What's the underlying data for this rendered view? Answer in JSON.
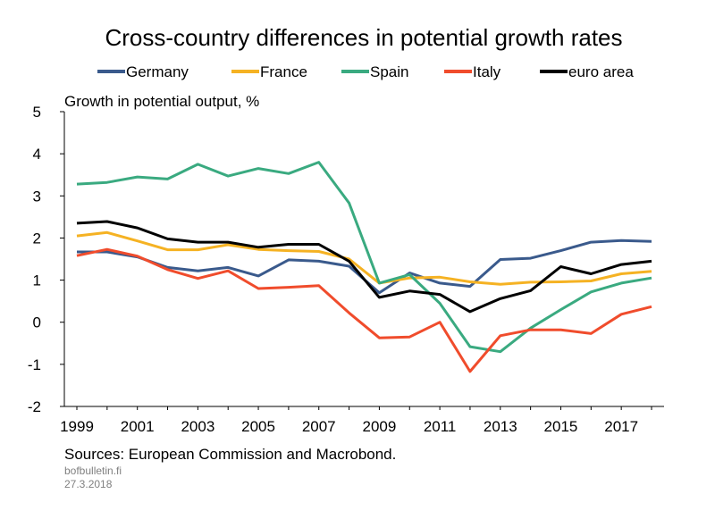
{
  "chart_data": {
    "type": "line",
    "title": "Cross-country differences in potential growth rates",
    "ylabel": "Growth in potential output, %",
    "xlabel": "",
    "x": [
      1999,
      2000,
      2001,
      2002,
      2003,
      2004,
      2005,
      2006,
      2007,
      2008,
      2009,
      2010,
      2011,
      2012,
      2013,
      2014,
      2015,
      2016,
      2017,
      2018
    ],
    "xticks": [
      "1999",
      "2001",
      "2003",
      "2005",
      "2007",
      "2009",
      "2011",
      "2013",
      "2015",
      "2017"
    ],
    "yticks": [
      "5",
      "4",
      "3",
      "2",
      "1",
      "0",
      "-1",
      "-2"
    ],
    "ylim": [
      -2,
      5
    ],
    "xlim": [
      1999,
      2018
    ],
    "grid": false,
    "legend_position": "top",
    "series": [
      {
        "name": "Germany",
        "color": "#3a5a8c",
        "values": [
          1.67,
          1.67,
          1.55,
          1.3,
          1.22,
          1.3,
          1.1,
          1.48,
          1.45,
          1.33,
          0.7,
          1.17,
          0.93,
          0.85,
          1.49,
          1.52,
          1.7,
          1.9,
          1.94,
          1.92
        ]
      },
      {
        "name": "France",
        "color": "#f5b223",
        "values": [
          2.05,
          2.13,
          1.93,
          1.72,
          1.72,
          1.84,
          1.73,
          1.7,
          1.68,
          1.5,
          0.93,
          1.05,
          1.07,
          0.96,
          0.9,
          0.95,
          0.96,
          0.98,
          1.15,
          1.21
        ]
      },
      {
        "name": "Spain",
        "color": "#3aaa80",
        "values": [
          3.28,
          3.32,
          3.45,
          3.4,
          3.75,
          3.47,
          3.65,
          3.53,
          3.8,
          2.83,
          0.93,
          1.13,
          0.45,
          -0.58,
          -0.7,
          -0.14,
          0.3,
          0.72,
          0.93,
          1.05
        ]
      },
      {
        "name": "Italy",
        "color": "#f04c2c",
        "values": [
          1.58,
          1.73,
          1.57,
          1.25,
          1.04,
          1.22,
          0.8,
          0.83,
          0.87,
          0.22,
          -0.37,
          -0.35,
          0.0,
          -1.17,
          -0.32,
          -0.18,
          -0.18,
          -0.27,
          0.19,
          0.37
        ]
      },
      {
        "name": "euro area",
        "color": "#000000",
        "values": [
          2.35,
          2.39,
          2.24,
          1.98,
          1.9,
          1.9,
          1.78,
          1.85,
          1.85,
          1.45,
          0.59,
          0.74,
          0.66,
          0.25,
          0.56,
          0.75,
          1.32,
          1.15,
          1.37,
          1.45
        ]
      }
    ],
    "source": "Sources: European Commission and Macrobond.",
    "footer": [
      "bofbulletin.fi",
      "27.3.2018"
    ]
  }
}
